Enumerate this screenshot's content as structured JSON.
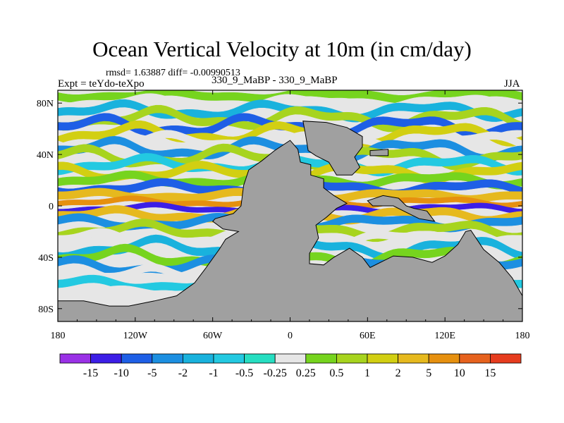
{
  "title": "Ocean Vertical Velocity at 10m (in cm/day)",
  "stats_text": "rmsd= 1.63887 diff= -0.00990513",
  "expt_text": "Expt = teYdo-teXpo",
  "case_text": "330_9_MaBP - 330_9_MaBP",
  "season": "JJA",
  "chart_data": {
    "type": "heatmap",
    "title": "Ocean Vertical Velocity at 10m (in cm/day)",
    "xlabel": "",
    "ylabel": "",
    "xlim": [
      -180,
      180
    ],
    "ylim": [
      -90,
      90
    ],
    "x_ticks": [
      {
        "value": -180,
        "label": "180"
      },
      {
        "value": -120,
        "label": "120W"
      },
      {
        "value": -60,
        "label": "60W"
      },
      {
        "value": 0,
        "label": "0"
      },
      {
        "value": 60,
        "label": "60E"
      },
      {
        "value": 120,
        "label": "120E"
      },
      {
        "value": 180,
        "label": "180"
      }
    ],
    "y_ticks": [
      {
        "value": 80,
        "label": "80N"
      },
      {
        "value": 40,
        "label": "40N"
      },
      {
        "value": 0,
        "label": "0"
      },
      {
        "value": -40,
        "label": "40S"
      },
      {
        "value": -80,
        "label": "80S"
      }
    ],
    "land_color": "#a0a0a0",
    "land_polygons": [
      {
        "name": "central-continent",
        "points": [
          [
            -32,
            28
          ],
          [
            -22,
            35
          ],
          [
            -12,
            43
          ],
          [
            0,
            51
          ],
          [
            6,
            44
          ],
          [
            8,
            34
          ],
          [
            16,
            32
          ],
          [
            16,
            24
          ],
          [
            26,
            21
          ],
          [
            26,
            14
          ],
          [
            34,
            8
          ],
          [
            44,
            2
          ],
          [
            36,
            -2
          ],
          [
            28,
            -9
          ],
          [
            20,
            -15
          ],
          [
            22,
            -25
          ],
          [
            15,
            -37
          ],
          [
            15,
            -45
          ],
          [
            26,
            -46
          ],
          [
            34,
            -40
          ],
          [
            46,
            -33
          ],
          [
            56,
            -40
          ],
          [
            62,
            -48
          ],
          [
            70,
            -44
          ],
          [
            80,
            -39
          ],
          [
            95,
            -40
          ],
          [
            110,
            -44
          ],
          [
            120,
            -39
          ],
          [
            130,
            -30
          ],
          [
            136,
            -20
          ],
          [
            140,
            -19
          ],
          [
            150,
            -34
          ],
          [
            162,
            -44
          ],
          [
            172,
            -56
          ],
          [
            180,
            -70
          ],
          [
            180,
            -90
          ],
          [
            -180,
            -90
          ],
          [
            -180,
            -74
          ],
          [
            -160,
            -74
          ],
          [
            -140,
            -78
          ],
          [
            -125,
            -78
          ],
          [
            -105,
            -74
          ],
          [
            -88,
            -70
          ],
          [
            -74,
            -60
          ],
          [
            -65,
            -48
          ],
          [
            -55,
            -34
          ],
          [
            -50,
            -26
          ],
          [
            -40,
            -20
          ],
          [
            -52,
            -18
          ],
          [
            -60,
            -12
          ],
          [
            -58,
            -10
          ],
          [
            -44,
            -6
          ],
          [
            -38,
            0
          ],
          [
            -36,
            16
          ],
          [
            -32,
            28
          ]
        ]
      },
      {
        "name": "northern-landmass",
        "points": [
          [
            10,
            66
          ],
          [
            12,
            55
          ],
          [
            14,
            43
          ],
          [
            20,
            39
          ],
          [
            30,
            34
          ],
          [
            36,
            24
          ],
          [
            48,
            24
          ],
          [
            54,
            30
          ],
          [
            50,
            38
          ],
          [
            56,
            46
          ],
          [
            56,
            54
          ],
          [
            44,
            61
          ],
          [
            28,
            65
          ],
          [
            10,
            66
          ]
        ]
      },
      {
        "name": "small-island-north",
        "points": [
          [
            62,
            43
          ],
          [
            76,
            44
          ],
          [
            76,
            39
          ],
          [
            62,
            39
          ],
          [
            62,
            43
          ]
        ]
      },
      {
        "name": "island-arc-east",
        "points": [
          [
            60,
            4
          ],
          [
            72,
            8
          ],
          [
            84,
            6
          ],
          [
            90,
            0
          ],
          [
            96,
            -2
          ],
          [
            106,
            -4
          ],
          [
            112,
            -12
          ],
          [
            100,
            -10
          ],
          [
            92,
            -6
          ],
          [
            80,
            0
          ],
          [
            64,
            0
          ],
          [
            60,
            4
          ]
        ]
      }
    ],
    "bands": [
      {
        "lat": 86,
        "amp": 2,
        "phase": 0.2,
        "thick": 3,
        "value": 0.5
      },
      {
        "lat": 80,
        "amp": 3,
        "phase": 1.1,
        "thick": 3,
        "value": 0
      },
      {
        "lat": 74,
        "amp": 4,
        "phase": 2.3,
        "thick": 3,
        "value": -1.5
      },
      {
        "lat": 68,
        "amp": 5,
        "phase": 0.7,
        "thick": 3,
        "value": 1
      },
      {
        "lat": 62,
        "amp": 5,
        "phase": 3.1,
        "thick": 3,
        "value": -5
      },
      {
        "lat": 56,
        "amp": 5,
        "phase": 1.6,
        "thick": 3,
        "value": 2
      },
      {
        "lat": 50,
        "amp": 4,
        "phase": 0.3,
        "thick": 3,
        "value": 0
      },
      {
        "lat": 44,
        "amp": 5,
        "phase": 2.7,
        "thick": 3,
        "value": -2
      },
      {
        "lat": 38,
        "amp": 5,
        "phase": 4.0,
        "thick": 3,
        "value": 1
      },
      {
        "lat": 32,
        "amp": 4,
        "phase": 1.2,
        "thick": 3,
        "value": -0.5
      },
      {
        "lat": 26,
        "amp": 4,
        "phase": 5.1,
        "thick": 3,
        "value": 2
      },
      {
        "lat": 20,
        "amp": 3,
        "phase": 2.0,
        "thick": 3,
        "value": 0.5
      },
      {
        "lat": 14,
        "amp": 3,
        "phase": 0.5,
        "thick": 3,
        "value": -5
      },
      {
        "lat": 8,
        "amp": 2,
        "phase": 3.4,
        "thick": 3,
        "value": 5
      },
      {
        "lat": 3,
        "amp": 2,
        "phase": 1.9,
        "thick": 2,
        "value": 10
      },
      {
        "lat": -2,
        "amp": 2,
        "phase": 0.9,
        "thick": 2,
        "value": -10
      },
      {
        "lat": -7,
        "amp": 3,
        "phase": 2.6,
        "thick": 3,
        "value": 5
      },
      {
        "lat": -13,
        "amp": 3,
        "phase": 4.3,
        "thick": 3,
        "value": -2
      },
      {
        "lat": -19,
        "amp": 4,
        "phase": 1.4,
        "thick": 3,
        "value": 1
      },
      {
        "lat": -26,
        "amp": 4,
        "phase": 3.3,
        "thick": 3,
        "value": 0
      },
      {
        "lat": -33,
        "amp": 5,
        "phase": 0.8,
        "thick": 3,
        "value": -1
      },
      {
        "lat": -40,
        "amp": 5,
        "phase": 2.2,
        "thick": 3,
        "value": 0.5
      },
      {
        "lat": -47,
        "amp": 4,
        "phase": 4.5,
        "thick": 3,
        "value": -2
      },
      {
        "lat": -54,
        "amp": 4,
        "phase": 1.0,
        "thick": 3,
        "value": 0
      },
      {
        "lat": -61,
        "amp": 3,
        "phase": 3.7,
        "thick": 3,
        "value": -0.5
      },
      {
        "lat": -68,
        "amp": 2,
        "phase": 2.4,
        "thick": 3,
        "value": 0
      }
    ],
    "colorbar": {
      "colors": [
        "#9a31e6",
        "#3c1ee6",
        "#1e5fe6",
        "#1c8fe1",
        "#19b2dd",
        "#23c9e1",
        "#26dec1",
        "#e6e6e6",
        "#76d41e",
        "#a7d41e",
        "#d2cf12",
        "#e6b91e",
        "#e6900f",
        "#e6621e",
        "#e63c1e"
      ],
      "labels": [
        "-15",
        "-10",
        "-5",
        "-2",
        "-1",
        "-0.5",
        "-0.25",
        "0.25",
        "0.5",
        "1",
        "2",
        "5",
        "10",
        "15"
      ],
      "levels": [
        -15,
        -10,
        -5,
        -2,
        -1,
        -0.5,
        -0.25,
        0.25,
        0.5,
        1,
        2,
        5,
        10,
        15
      ]
    }
  }
}
